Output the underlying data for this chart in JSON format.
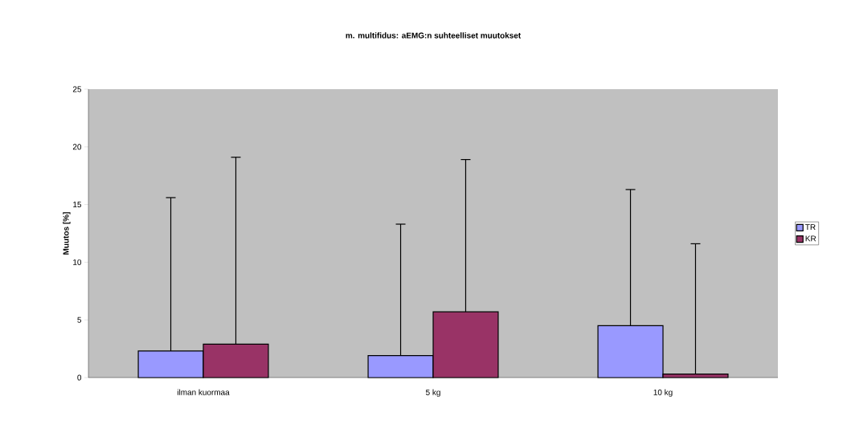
{
  "chart_data": {
    "type": "bar",
    "title": "m. multifidus: aEMG:n suhteelliset muutokset",
    "ylabel": "Muutos [%]",
    "categories": [
      "ilman kuormaa",
      "5 kg",
      "10 kg"
    ],
    "series": [
      {
        "name": "TR",
        "color": "#9999ff",
        "values": [
          2.3,
          1.9,
          4.5
        ],
        "errors": [
          [
            2.3,
            15.6
          ],
          [
            1.9,
            13.3
          ],
          [
            4.5,
            16.3
          ]
        ]
      },
      {
        "name": "KR",
        "color": "#993366",
        "values": [
          2.9,
          5.7,
          0.3
        ],
        "errors": [
          [
            2.9,
            19.1
          ],
          [
            5.7,
            18.9
          ],
          [
            0.3,
            11.6
          ]
        ]
      }
    ],
    "ylim": [
      0,
      25
    ],
    "yticks": [
      0,
      5,
      10,
      15,
      20,
      25
    ],
    "grid": false,
    "legend": "right"
  }
}
